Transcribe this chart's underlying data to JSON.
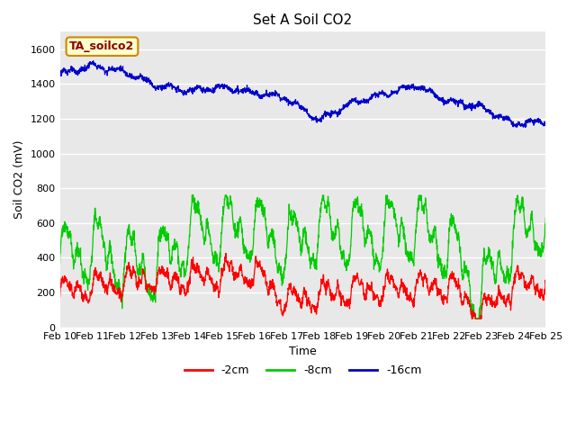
{
  "title": "Set A Soil CO2",
  "xlabel": "Time",
  "ylabel": "Soil CO2 (mV)",
  "legend_label": "TA_soilco2",
  "series_labels": [
    "-2cm",
    "-8cm",
    "-16cm"
  ],
  "series_colors": [
    "#ff0000",
    "#00cc00",
    "#0000cc"
  ],
  "bg_color": "#e8e8e8",
  "fig_bg": "#ffffff",
  "ylim": [
    0,
    1700
  ],
  "yticks": [
    0,
    200,
    400,
    600,
    800,
    1000,
    1200,
    1400,
    1600
  ],
  "x_tick_labels": [
    "Feb 10",
    "Feb 11",
    "Feb 12",
    "Feb 13",
    "Feb 14",
    "Feb 15",
    "Feb 16",
    "Feb 17",
    "Feb 18",
    "Feb 19",
    "Feb 20",
    "Feb 21",
    "Feb 22",
    "Feb 23",
    "Feb 24",
    "Feb 25"
  ],
  "n_points": 2000
}
